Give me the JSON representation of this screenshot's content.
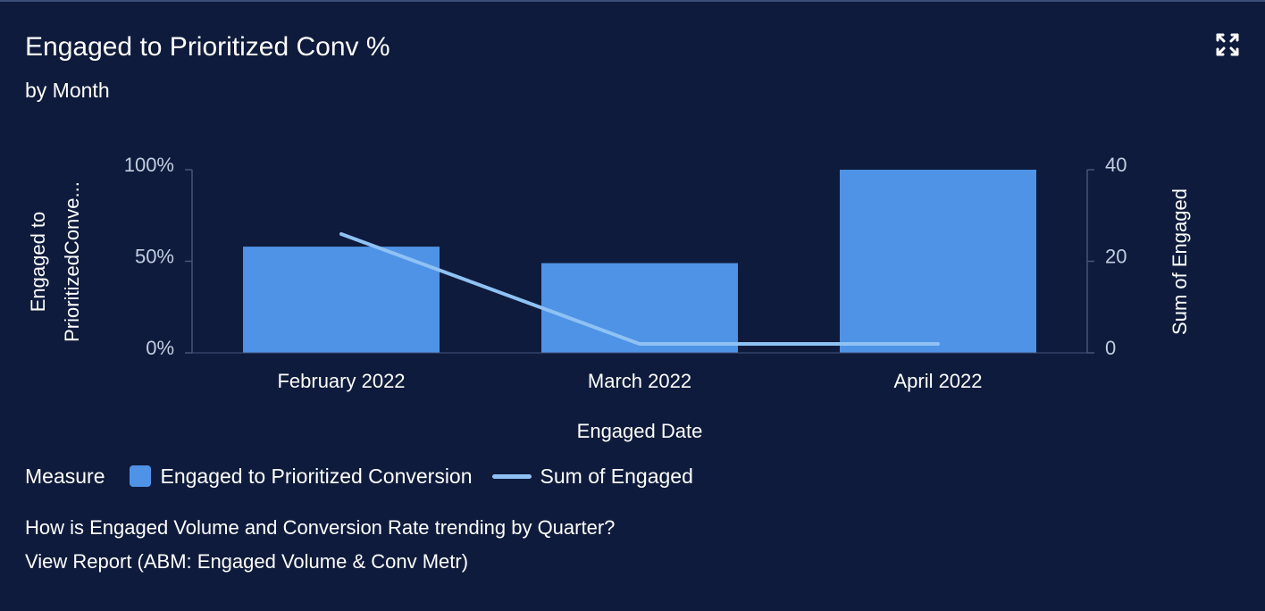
{
  "header": {
    "title": "Engaged to Prioritized Conv %",
    "subtitle": "by Month"
  },
  "icons": {
    "expand": "expand-icon"
  },
  "colors": {
    "background": "#0e1b3c",
    "bar": "#4f93e6",
    "line": "#8fc2f4",
    "axis": "#44557a",
    "tick_text": "#c3cde0"
  },
  "chart_data": {
    "type": "bar",
    "categories": [
      "February 2022",
      "March 2022",
      "April 2022"
    ],
    "series": [
      {
        "name": "Engaged to Prioritized Conversion",
        "type": "bar",
        "axis": "left",
        "values": [
          58,
          49,
          100
        ]
      },
      {
        "name": "Sum of Engaged",
        "type": "line",
        "axis": "right",
        "values": [
          24,
          0,
          0
        ]
      }
    ],
    "xlabel": "Engaged Date",
    "ylabel_left": "Engaged to PrioritizedConve...",
    "ylabel_left_lines": [
      "Engaged to",
      "PrioritizedConve..."
    ],
    "ylabel_right": "Sum of Engaged",
    "ylim_left": [
      0,
      100
    ],
    "ylim_right": [
      0,
      40
    ],
    "yticks_left": [
      "0%",
      "50%",
      "100%"
    ],
    "yticks_right": [
      "0",
      "20",
      "40"
    ],
    "grid": false,
    "legend_position": "bottom-left"
  },
  "legend": {
    "title": "Measure",
    "items": [
      "Engaged to Prioritized Conversion",
      "Sum of Engaged"
    ]
  },
  "footer": {
    "question": "How is Engaged Volume and Conversion Rate trending by Quarter?",
    "report_link": "View Report (ABM: Engaged Volume & Conv Metr)"
  }
}
